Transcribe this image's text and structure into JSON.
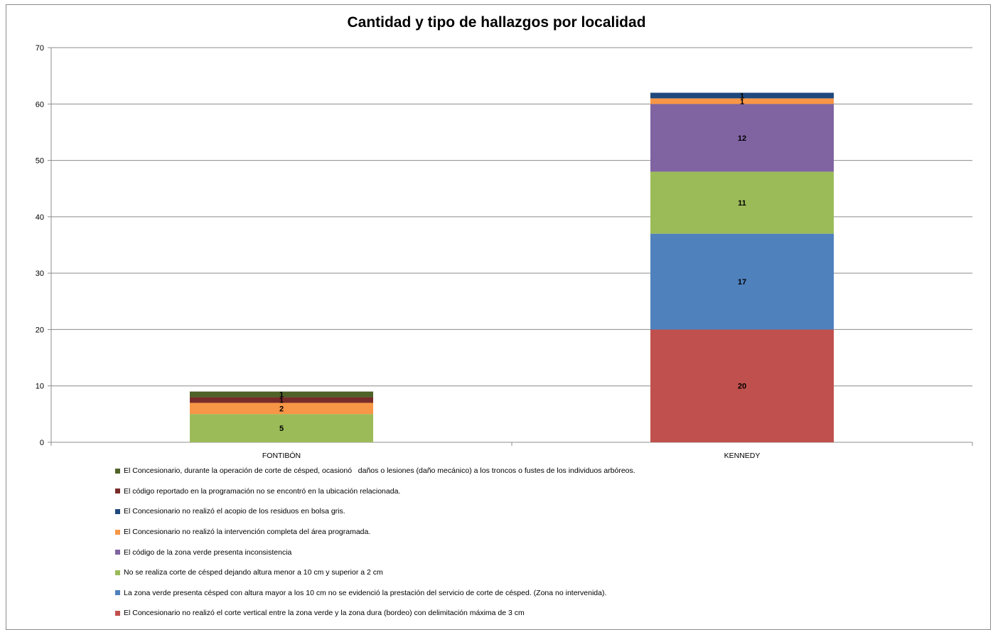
{
  "chart_data": {
    "type": "bar",
    "stacked": true,
    "title": "Cantidad y tipo de hallazgos por localidad",
    "xlabel": "",
    "ylabel": "",
    "ylim": [
      0,
      70
    ],
    "yticks": [
      0,
      10,
      20,
      30,
      40,
      50,
      60,
      70
    ],
    "grid": true,
    "legend_position": "bottom",
    "categories": [
      "FONTIBÓN",
      "KENNEDY"
    ],
    "series": [
      {
        "name": "El Concesionario no realizó el corte vertical entre la zona verde y la zona dura (bordeo) con delimitación máxima de 3 cm",
        "color": "#c0504d",
        "values": [
          0,
          20
        ]
      },
      {
        "name": "La zona verde presenta césped con altura mayor a los 10 cm no se evidenció la prestación del servicio de corte de césped. (Zona no intervenida).",
        "color": "#4f81bd",
        "values": [
          0,
          17
        ]
      },
      {
        "name": "No se realiza corte de césped dejando altura menor a 10 cm y superior a 2 cm",
        "color": "#9bbb59",
        "values": [
          5,
          11
        ]
      },
      {
        "name": "El código de la zona verde presenta inconsistencia",
        "color": "#8064a2",
        "values": [
          0,
          12
        ]
      },
      {
        "name": "El Concesionario no realizó la intervención completa del área programada.",
        "color": "#f79646",
        "values": [
          2,
          1
        ]
      },
      {
        "name": "El Concesionario no realizó el acopio de los residuos en bolsa gris.",
        "color": "#1f497d",
        "values": [
          0,
          1
        ]
      },
      {
        "name": "El código reportado en la programación no se encontró en la ubicación relacionada.",
        "color": "#772c2a",
        "values": [
          1,
          0
        ]
      },
      {
        "name": "El Concesionario, durante la operación de corte de césped, ocasionó   daños o lesiones (daño mecánico) a los troncos o fustes de los individuos arbóreos.",
        "color": "#4f6228",
        "values": [
          1,
          0
        ]
      }
    ]
  }
}
